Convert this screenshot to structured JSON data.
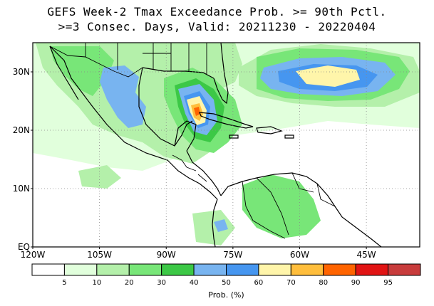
{
  "title": {
    "line1": "GEFS Week-2 Tmax Exceedance Prob. >= 90th Pctl.",
    "line2": ">=3 Consec. Days, Valid: 20211230 - 20220404"
  },
  "map": {
    "lon_range": [
      -120,
      -33
    ],
    "lat_range": [
      0,
      35
    ],
    "lat_labels": [
      {
        "lat": 30,
        "text": "30N"
      },
      {
        "lat": 20,
        "text": "20N"
      },
      {
        "lat": 10,
        "text": "10N"
      },
      {
        "lat": 0,
        "text": "EQ"
      }
    ],
    "lon_labels": [
      {
        "lon": -120,
        "text": "120W"
      },
      {
        "lon": -105,
        "text": "105W"
      },
      {
        "lon": -90,
        "text": "90W"
      },
      {
        "lon": -75,
        "text": "75W"
      },
      {
        "lon": -60,
        "text": "60W"
      },
      {
        "lon": -45,
        "text": "45W"
      }
    ],
    "grid_lines": true
  },
  "colorbar": {
    "title": "Prob. (%)",
    "labels": [
      "5",
      "10",
      "20",
      "30",
      "40",
      "50",
      "60",
      "70",
      "80",
      "90",
      "95"
    ],
    "colors": [
      "#ffffff",
      "#e1ffdc",
      "#b4f0aa",
      "#78e678",
      "#3cc846",
      "#78b4f0",
      "#4696f0",
      "#fff5aa",
      "#ffbe3c",
      "#ff6400",
      "#e11414",
      "#c83c3c"
    ]
  }
}
